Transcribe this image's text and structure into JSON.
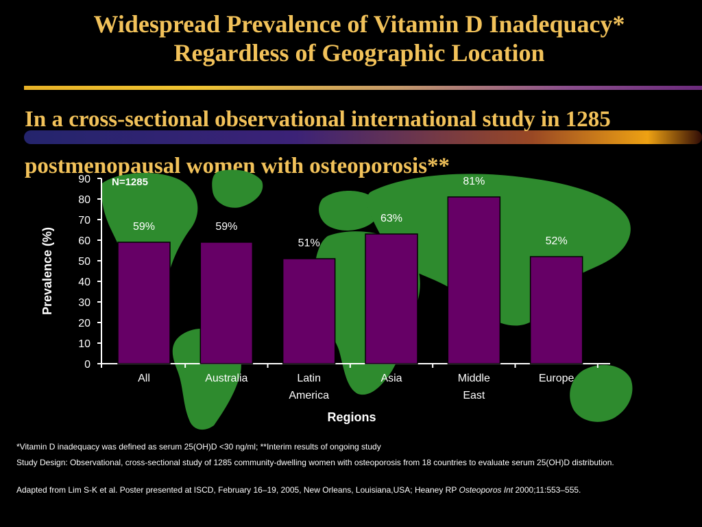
{
  "slide": {
    "title_line1": "Widespread Prevalence of Vitamin D Inadequacy*",
    "title_line2": "Regardless of Geographic Location",
    "subtitle": "In a cross-sectional observational international study in 1285 postmenopausal women with osteoporosis**"
  },
  "chart_data": {
    "type": "bar",
    "categories": [
      [
        "All"
      ],
      [
        "Australia"
      ],
      [
        "Latin",
        "America"
      ],
      [
        "Asia"
      ],
      [
        "Middle",
        "East"
      ],
      [
        "Europe"
      ]
    ],
    "values": [
      59,
      59,
      51,
      63,
      81,
      52
    ],
    "data_labels": [
      "59%",
      "59%",
      "51%",
      "63%",
      "81%",
      "52%"
    ],
    "xlabel": "Regions",
    "ylabel": "Prevalence (%)",
    "ylim": [
      0,
      90
    ],
    "yticks": [
      0,
      10,
      20,
      30,
      40,
      50,
      60,
      70,
      80,
      90
    ],
    "annotation": "N=1285",
    "grid": false,
    "colors": {
      "bar": "#660066",
      "bar_stroke": "#000000",
      "axis": "#ffffff",
      "continents": "#2e8b2e"
    }
  },
  "footnotes": {
    "f1": "*Vitamin D inadequacy was defined as serum 25(OH)D <30 ng/ml; **Interim results of ongoing study",
    "f2": "Study Design: Observational, cross-sectional study of 1285 community-dwelling women with osteoporosis from 18 countries to evaluate serum 25(OH)D distribution.",
    "f3_text": "Adapted from Lim S-K et al. Poster presented at ISCD, February 16–19, 2005, New Orleans, Louisiana,USA; Heaney RP ",
    "f3_journal": "Osteoporos Int",
    "f3_tail": " 2000;11:553–555."
  }
}
